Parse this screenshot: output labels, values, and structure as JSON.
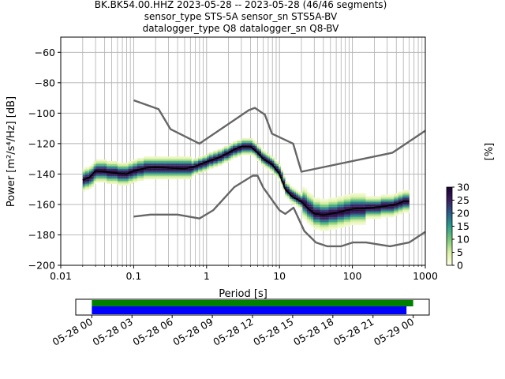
{
  "title_lines": [
    "BK.BK54.00.HHZ   2023-05-28 -- 2023-05-28  (46/46 segments)",
    "sensor_type STS-5A sensor_sn STS5A-BV",
    "datalogger_type Q8 datalogger_sn Q8-BV"
  ],
  "colorbar": {
    "label": "[%]",
    "ticks": [
      "0",
      "5",
      "10",
      "15",
      "20",
      "25",
      "30"
    ],
    "range": [
      0,
      30
    ],
    "colormap": [
      "#ffffe5",
      "#d9f0a3",
      "#78c679",
      "#2c9c8a",
      "#2b5d8a",
      "#3b1e5c",
      "#1a0033"
    ]
  },
  "chart_data": {
    "type": "heatmap",
    "xlabel": "Period [s]",
    "ylabel": "Power [m²/s⁴/Hz] [dB]",
    "x_scale": "log",
    "xlim": [
      0.01,
      1000
    ],
    "ylim": [
      -200,
      -50
    ],
    "x_ticks": [
      "0.01",
      "0.1",
      "1",
      "10",
      "100",
      "1000"
    ],
    "y_ticks": [
      "−200",
      "−180",
      "−160",
      "−140",
      "−120",
      "−100",
      "−80",
      "−60"
    ],
    "grid": true,
    "noise_model_high": {
      "period": [
        0.1,
        0.22,
        0.32,
        0.8,
        3.8,
        4.6,
        6.3,
        7.9,
        15.4,
        20,
        354.8,
        1000
      ],
      "power": [
        -91.5,
        -97.4,
        -110.5,
        -120,
        -98,
        -96.5,
        -101,
        -113.5,
        -120,
        -138.5,
        -126,
        -111.5
      ]
    },
    "noise_model_low": {
      "period": [
        0.1,
        0.17,
        0.4,
        0.8,
        1.24,
        2.4,
        4.3,
        5,
        6,
        10,
        12,
        15.6,
        21.9,
        31.6,
        45,
        70,
        101,
        154,
        328,
        600,
        1000
      ],
      "power": [
        -168,
        -166.7,
        -166.7,
        -169.2,
        -163.7,
        -148.6,
        -141.1,
        -141.1,
        -149,
        -163.8,
        -166.2,
        -162.1,
        -177.5,
        -185,
        -187.5,
        -187.5,
        -185,
        -185,
        -187.5,
        -185,
        -178
      ]
    },
    "median_psd": {
      "period": [
        0.02,
        0.025,
        0.03,
        0.04,
        0.06,
        0.08,
        0.1,
        0.15,
        0.2,
        0.3,
        0.5,
        0.7,
        1,
        1.5,
        2,
        2.5,
        3,
        4,
        5,
        6,
        8,
        10,
        12,
        15,
        20,
        25,
        30,
        40,
        60,
        80,
        100,
        150,
        200,
        300,
        400,
        500,
        600
      ],
      "power": [
        -144,
        -142,
        -138,
        -138.5,
        -139.5,
        -140,
        -138,
        -136,
        -135.5,
        -136,
        -136.5,
        -135,
        -132,
        -129,
        -126,
        -123.5,
        -122,
        -122,
        -126,
        -130,
        -134,
        -140,
        -150,
        -155,
        -158,
        -163,
        -166,
        -167,
        -165.5,
        -164,
        -163,
        -162.5,
        -162,
        -161,
        -160,
        -158,
        -158
      ]
    },
    "segment_time_axis": {
      "tick_labels": [
        "05-28 00",
        "05-28 03",
        "05-28 06",
        "05-28 09",
        "05-28 12",
        "05-28 15",
        "05-28 18",
        "05-28 21",
        "05-29 00"
      ],
      "range_hours": [
        -1.2,
        25.2
      ],
      "data_coverage_hours": [
        0,
        24
      ],
      "segments_used_hours": [
        0,
        23.5
      ],
      "colors": {
        "coverage": "#008000",
        "segments": "#0000ff"
      }
    }
  }
}
